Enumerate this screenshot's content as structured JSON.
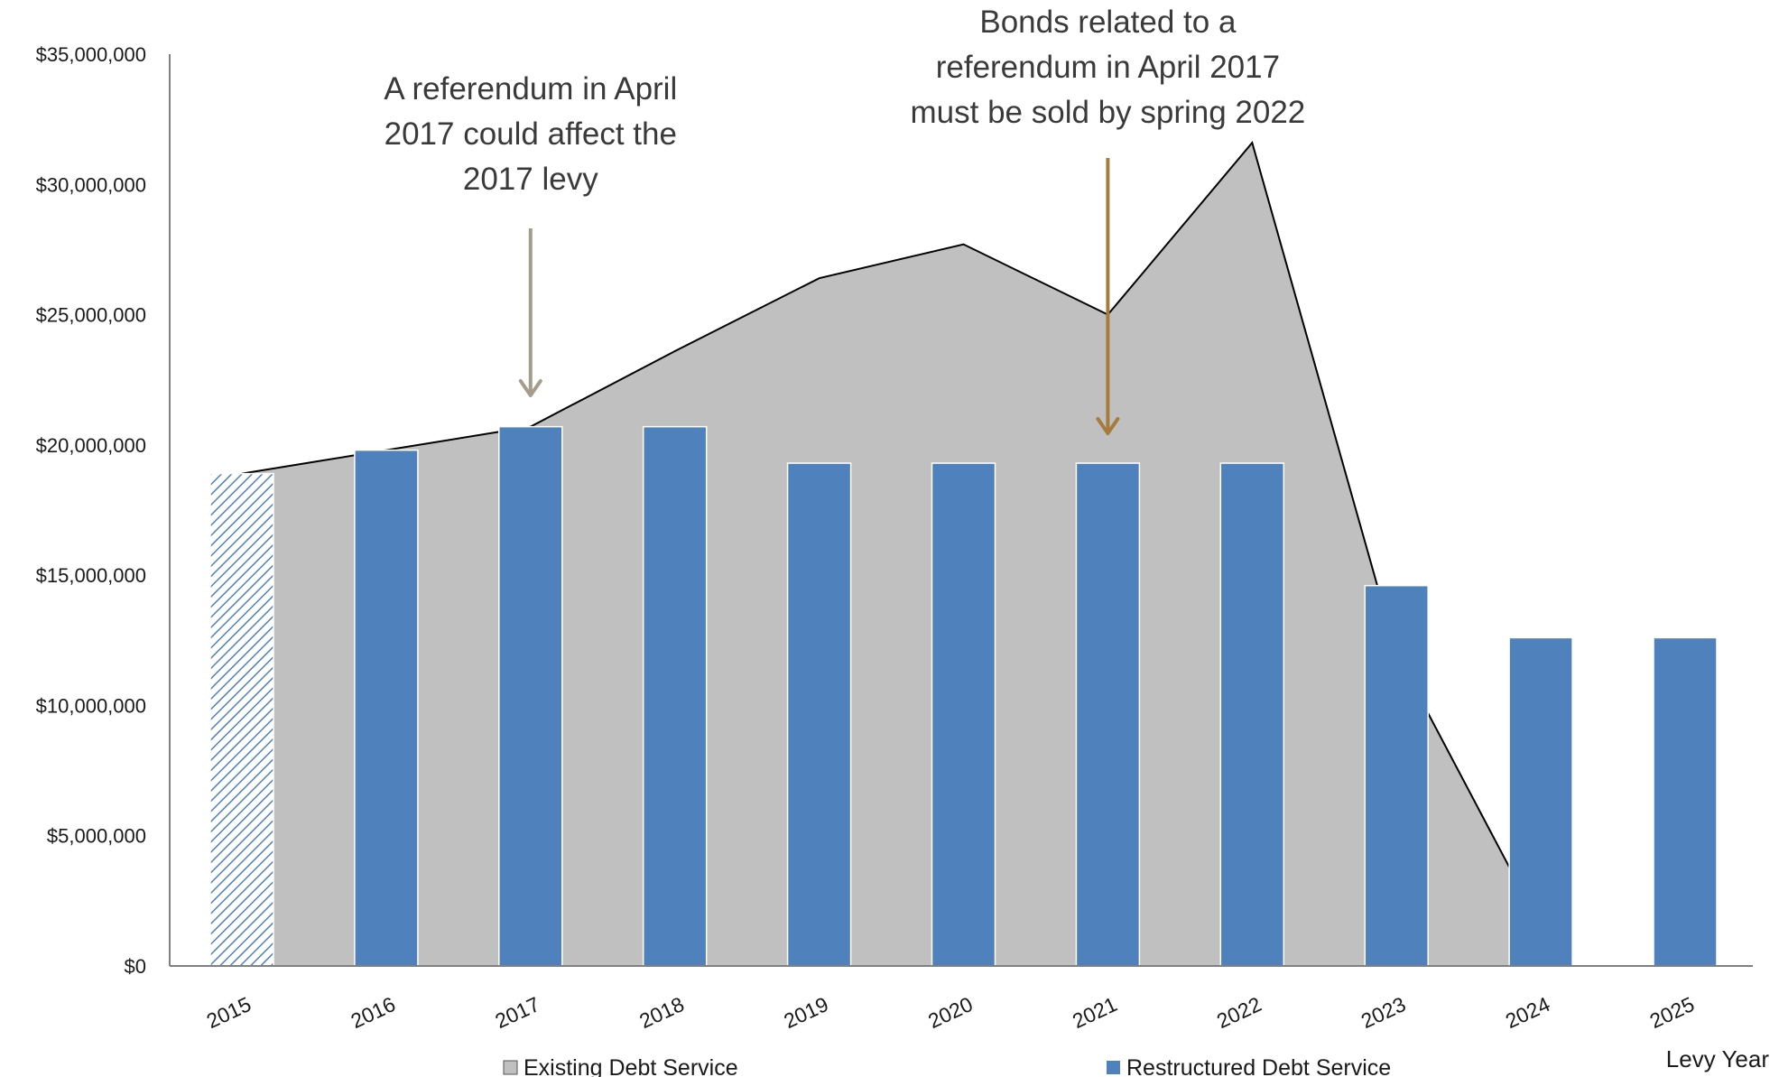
{
  "chart_data": {
    "type": "bar",
    "categories": [
      "2015",
      "2016",
      "2017",
      "2018",
      "2019",
      "2020",
      "2021",
      "2022",
      "2023",
      "2024",
      "2025"
    ],
    "series": [
      {
        "name": "Existing Debt Service",
        "type": "area",
        "color": "#c0c0c0",
        "values": [
          18900000,
          19800000,
          20700000,
          23600000,
          26400000,
          27700000,
          25000000,
          31600000,
          12000000,
          1500000,
          null
        ]
      },
      {
        "name": "Restructured Debt Service",
        "type": "bar",
        "color": "#4f81bd",
        "values": [
          18900000,
          19800000,
          20700000,
          20700000,
          19300000,
          19300000,
          19300000,
          19300000,
          14600000,
          12600000,
          12600000
        ]
      }
    ],
    "y_ticks": [
      "$0",
      "$5,000,000",
      "$10,000,000",
      "$15,000,000",
      "$20,000,000",
      "$25,000,000",
      "$30,000,000",
      "$35,000,000"
    ],
    "ylim": [
      0,
      35000000
    ],
    "xlabel": "Levy Year",
    "ylabel": "",
    "hatched_category": "2015",
    "legend_position": "bottom",
    "annotations": [
      {
        "lines": [
          "A referendum in April",
          "2017 could affect the",
          "2017 levy"
        ],
        "category": "2017",
        "arrow_color": "#a59c8c"
      },
      {
        "lines": [
          "Bonds related to a",
          "referendum in April 2017",
          "must be sold by spring 2022"
        ],
        "category": "2021",
        "arrow_color": "#a67c3d"
      }
    ]
  }
}
